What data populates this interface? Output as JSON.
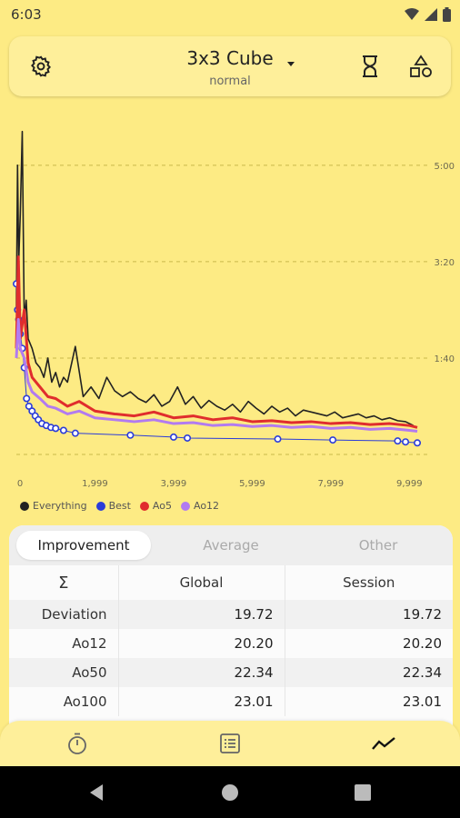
{
  "status": {
    "time": "6:03",
    "icons": [
      "wifi-icon",
      "signal-icon",
      "battery-icon"
    ]
  },
  "header": {
    "title": "3x3 Cube",
    "subtitle": "normal",
    "icons": [
      "gear-icon",
      "chevron-down-icon",
      "hourglass-icon",
      "shapes-icon"
    ]
  },
  "chart_data": {
    "type": "line",
    "x_ticks": [
      "0",
      "1,999",
      "3,999",
      "5,999",
      "7,999",
      "9,999"
    ],
    "y_ticks": [
      "1:40",
      "3:20",
      "5:00"
    ],
    "y_tick_values": [
      100,
      200,
      300
    ],
    "xlim": [
      0,
      10500
    ],
    "ylim": [
      0,
      330
    ],
    "grid": true,
    "legend_position": "bottom-left",
    "series": [
      {
        "name": "Everything",
        "color": "#222222",
        "x": [
          0,
          30,
          60,
          100,
          150,
          200,
          250,
          300,
          400,
          500,
          600,
          700,
          800,
          900,
          1000,
          1100,
          1200,
          1300,
          1500,
          1700,
          1900,
          2100,
          2300,
          2500,
          2700,
          2900,
          3100,
          3300,
          3500,
          3700,
          3900,
          4100,
          4300,
          4500,
          4700,
          4900,
          5100,
          5300,
          5500,
          5700,
          5900,
          6100,
          6300,
          6500,
          6700,
          6900,
          7100,
          7300,
          7500,
          7700,
          7900,
          8100,
          8300,
          8500,
          8700,
          8900,
          9100,
          9300,
          9500,
          9700,
          9900,
          10100
        ],
        "y": [
          150,
          300,
          200,
          250,
          335,
          140,
          160,
          120,
          110,
          95,
          90,
          80,
          100,
          75,
          85,
          70,
          80,
          75,
          112,
          60,
          70,
          58,
          80,
          66,
          60,
          65,
          58,
          54,
          62,
          50,
          55,
          70,
          52,
          60,
          48,
          56,
          50,
          46,
          52,
          44,
          55,
          48,
          42,
          50,
          44,
          48,
          40,
          46,
          44,
          42,
          40,
          44,
          38,
          40,
          42,
          38,
          40,
          36,
          38,
          35,
          34,
          30
        ]
      },
      {
        "name": "Best",
        "color": "#2b3cd8",
        "x": [
          0,
          30,
          60,
          100,
          150,
          200,
          260,
          320,
          400,
          480,
          560,
          650,
          760,
          880,
          1000,
          1200,
          1500,
          2900,
          4000,
          4350,
          6650,
          8050,
          9700,
          9900,
          10200
        ],
        "y": [
          177,
          150,
          140,
          125,
          110,
          90,
          58,
          50,
          45,
          40,
          36,
          32,
          30,
          28,
          27,
          25,
          22,
          20,
          18,
          17,
          16,
          15,
          14,
          13,
          12
        ]
      },
      {
        "name": "Ao5",
        "color": "#e02d2d",
        "x": [
          0,
          50,
          100,
          200,
          300,
          400,
          600,
          800,
          1000,
          1300,
          1600,
          2000,
          2500,
          3000,
          3500,
          4000,
          4500,
          5000,
          5500,
          6000,
          6500,
          7000,
          7500,
          8000,
          8500,
          9000,
          9500,
          10000,
          10200
        ],
        "y": [
          110,
          205,
          120,
          150,
          95,
          80,
          70,
          60,
          58,
          50,
          55,
          45,
          42,
          40,
          44,
          38,
          40,
          36,
          38,
          34,
          35,
          33,
          34,
          32,
          33,
          31,
          32,
          30,
          28
        ]
      },
      {
        "name": "Ao12",
        "color": "#b27bf0",
        "x": [
          0,
          50,
          100,
          200,
          300,
          400,
          600,
          800,
          1000,
          1300,
          1600,
          2000,
          2500,
          3000,
          3500,
          4000,
          4500,
          5000,
          5500,
          6000,
          6500,
          7000,
          7500,
          8000,
          8500,
          9000,
          9500,
          10000,
          10200
        ],
        "y": [
          100,
          140,
          110,
          100,
          75,
          65,
          58,
          50,
          48,
          42,
          45,
          38,
          36,
          34,
          36,
          32,
          33,
          30,
          31,
          29,
          30,
          28,
          29,
          27,
          28,
          26,
          27,
          25,
          24
        ]
      }
    ]
  },
  "tabs": [
    {
      "label": "Improvement",
      "active": true
    },
    {
      "label": "Average",
      "active": false
    },
    {
      "label": "Other",
      "active": false
    }
  ],
  "table": {
    "corner": "Σ",
    "columns": [
      "Global",
      "Session"
    ],
    "rows": [
      {
        "label": "Deviation",
        "global": "19.72",
        "session": "19.72"
      },
      {
        "label": "Ao12",
        "global": "20.20",
        "session": "20.20"
      },
      {
        "label": "Ao50",
        "global": "22.34",
        "session": "22.34"
      },
      {
        "label": "Ao100",
        "global": "23.01",
        "session": "23.01"
      }
    ]
  },
  "bottom_nav": [
    {
      "icon": "stopwatch-icon",
      "active": false
    },
    {
      "icon": "list-icon",
      "active": false
    },
    {
      "icon": "trend-icon",
      "active": true
    }
  ],
  "system_nav": [
    "back-icon",
    "home-icon",
    "recents-icon"
  ]
}
